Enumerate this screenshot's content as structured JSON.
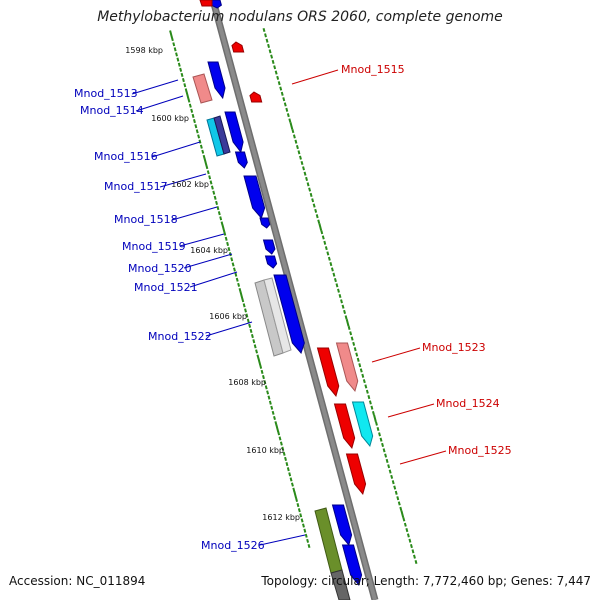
{
  "title": "Methylobacterium nodulans ORS 2060, complete genome",
  "footer": {
    "accession": "Accession: NC_011894",
    "summary": "Topology: circular; Length: 7,772,460 bp; Genes: 7,447"
  },
  "colors": {
    "backbone": "#8a8a8a",
    "forward_gene": "#0000ee",
    "reverse_gene": "#ee0000",
    "tick": "#2a8a1a",
    "label_left": "#0000bb",
    "label_right": "#cc0000"
  },
  "scale_labels": [
    "1598 kbp",
    "1600 kbp",
    "1602 kbp",
    "1604 kbp",
    "1606 kbp",
    "1608 kbp",
    "1610 kbp",
    "1612 kbp"
  ],
  "genes_left": [
    {
      "label": "Mnod_1513"
    },
    {
      "label": "Mnod_1514"
    },
    {
      "label": "Mnod_1516"
    },
    {
      "label": "Mnod_1517"
    },
    {
      "label": "Mnod_1518"
    },
    {
      "label": "Mnod_1519"
    },
    {
      "label": "Mnod_1520"
    },
    {
      "label": "Mnod_1521"
    },
    {
      "label": "Mnod_1522"
    },
    {
      "label": "Mnod_1526"
    }
  ],
  "genes_right": [
    {
      "label": "Mnod_1515"
    },
    {
      "label": "Mnod_1523"
    },
    {
      "label": "Mnod_1524"
    },
    {
      "label": "Mnod_1525"
    }
  ]
}
